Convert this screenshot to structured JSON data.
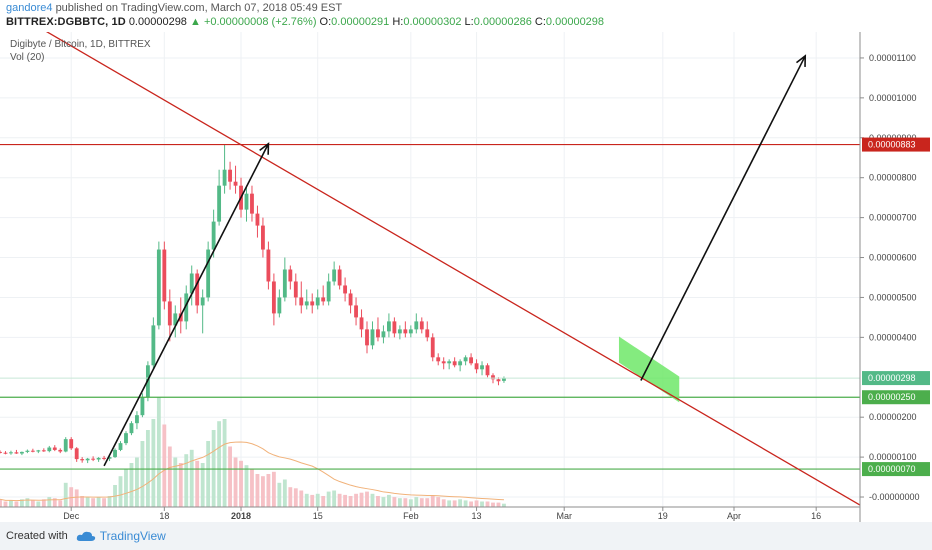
{
  "header": {
    "author": "gandore4",
    "published_text": "published on TradingView.com, March 07, 2018 05:49 EST",
    "symbol": "BITTREX:DGBBTC, 1D",
    "last": "0.00000298",
    "change": "▲ +0.00000008 (+2.76%)",
    "o_label": "O:",
    "o_value": "0.00000291",
    "h_label": "H:",
    "h_value": "0.00000302",
    "l_label": "L:",
    "l_value": "0.00000286",
    "c_label": "C:",
    "c_value": "0.00000298"
  },
  "footer": {
    "created_with": "Created with",
    "brand": "TradingView"
  },
  "colors": {
    "up": "#53b987",
    "down": "#eb4d5c",
    "up_volume": "#bfe5cf",
    "down_volume": "#f6c1c6",
    "trendline": "#c9251d",
    "resistance": "#c9251d",
    "support": "#4cae4c",
    "current_price": "#53b987",
    "highlight": "#6ee868",
    "arrow": "#111111",
    "ma": "#f1b27a"
  },
  "chart_data": {
    "type": "candlestick",
    "title": "Digibyte / Bitcoin, 1D, BITTREX",
    "indicator": "Vol (20)",
    "ylim": [
      -2.5e-07,
      1.165e-05
    ],
    "y_ticks": [
      "0.00001100",
      "0.00001000",
      "0.00000900",
      "0.00000800",
      "0.00000700",
      "0.00000600",
      "0.00000500",
      "0.00000400",
      "0.00000200",
      "0.00000100",
      "-0.00000000"
    ],
    "x_ticks": [
      {
        "label": "Dec",
        "day": 0
      },
      {
        "label": "18",
        "day": 17
      },
      {
        "label": "2018",
        "day": 31
      },
      {
        "label": "15",
        "day": 45
      },
      {
        "label": "Feb",
        "day": 62
      },
      {
        "label": "13",
        "day": 74
      },
      {
        "label": "Mar",
        "day": 90
      },
      {
        "label": "19",
        "day": 108
      },
      {
        "label": "Apr",
        "day": 121
      },
      {
        "label": "16",
        "day": 136
      }
    ],
    "x_range_days": [
      -13,
      144
    ],
    "price_labels": [
      {
        "value": 8.83e-06,
        "text": "0.00000883",
        "color": "#c9251d"
      },
      {
        "value": 2.98e-06,
        "text": "0.00000298",
        "color": "#53b987"
      },
      {
        "value": 2.5e-06,
        "text": "0.00000250",
        "color": "#4cae4c"
      },
      {
        "value": 7e-07,
        "text": "0.00000070",
        "color": "#4cae4c"
      }
    ],
    "horizontal_lines": [
      {
        "value": 8.83e-06,
        "kind": "resistance"
      },
      {
        "value": 2.5e-06,
        "kind": "support"
      },
      {
        "value": 7e-07,
        "kind": "support"
      },
      {
        "value": 2.98e-06,
        "kind": "current"
      }
    ],
    "trendline": {
      "p1": {
        "day": -5,
        "value": 1.17e-05
      },
      "p2": {
        "day": 144,
        "value": -2e-07
      }
    },
    "arrows": [
      {
        "from": {
          "day": 6,
          "value": 7.8e-07
        },
        "to": {
          "day": 36,
          "value": 8.85e-06
        }
      },
      {
        "from": {
          "day": 104,
          "value": 2.92e-06
        },
        "to": {
          "day": 134,
          "value": 1.105e-05
        }
      }
    ],
    "highlight_zone": {
      "day_start": 100,
      "day_end": 111,
      "top_start": 4.02e-06,
      "top_end": 3.02e-06,
      "height": 6.5e-07
    },
    "candles": [
      {
        "day": -13,
        "o": 1.13e-06,
        "h": 1.17e-06,
        "l": 1.09e-06,
        "c": 1.11e-06,
        "v": 0.07
      },
      {
        "day": -12,
        "o": 1.11e-06,
        "h": 1.15e-06,
        "l": 1.07e-06,
        "c": 1.1e-06,
        "v": 0.05
      },
      {
        "day": -11,
        "o": 1.1e-06,
        "h": 1.16e-06,
        "l": 1.06e-06,
        "c": 1.12e-06,
        "v": 0.06
      },
      {
        "day": -10,
        "o": 1.12e-06,
        "h": 1.18e-06,
        "l": 1.08e-06,
        "c": 1.09e-06,
        "v": 0.05
      },
      {
        "day": -9,
        "o": 1.09e-06,
        "h": 1.14e-06,
        "l": 1.05e-06,
        "c": 1.13e-06,
        "v": 0.07
      },
      {
        "day": -8,
        "o": 1.13e-06,
        "h": 1.19e-06,
        "l": 1.1e-06,
        "c": 1.16e-06,
        "v": 0.08
      },
      {
        "day": -7,
        "o": 1.16e-06,
        "h": 1.21e-06,
        "l": 1.12e-06,
        "c": 1.14e-06,
        "v": 0.06
      },
      {
        "day": -6,
        "o": 1.14e-06,
        "h": 1.18e-06,
        "l": 1.1e-06,
        "c": 1.17e-06,
        "v": 0.05
      },
      {
        "day": -5,
        "o": 1.17e-06,
        "h": 1.22e-06,
        "l": 1.13e-06,
        "c": 1.15e-06,
        "v": 0.07
      },
      {
        "day": -4,
        "o": 1.15e-06,
        "h": 1.28e-06,
        "l": 1.12e-06,
        "c": 1.24e-06,
        "v": 0.09
      },
      {
        "day": -3,
        "o": 1.24e-06,
        "h": 1.3e-06,
        "l": 1.15e-06,
        "c": 1.18e-06,
        "v": 0.08
      },
      {
        "day": -2,
        "o": 1.18e-06,
        "h": 1.22e-06,
        "l": 1.1e-06,
        "c": 1.14e-06,
        "v": 0.06
      },
      {
        "day": -1,
        "o": 1.14e-06,
        "h": 1.5e-06,
        "l": 1.12e-06,
        "c": 1.45e-06,
        "v": 0.22
      },
      {
        "day": 0,
        "o": 1.45e-06,
        "h": 1.5e-06,
        "l": 1.18e-06,
        "c": 1.22e-06,
        "v": 0.18
      },
      {
        "day": 1,
        "o": 1.22e-06,
        "h": 1.25e-06,
        "l": 8.8e-07,
        "c": 9.5e-07,
        "v": 0.16
      },
      {
        "day": 2,
        "o": 9.5e-07,
        "h": 1e-06,
        "l": 8.6e-07,
        "c": 9.2e-07,
        "v": 0.1
      },
      {
        "day": 3,
        "o": 9.2e-07,
        "h": 9.8e-07,
        "l": 8.5e-07,
        "c": 9.6e-07,
        "v": 0.09
      },
      {
        "day": 4,
        "o": 9.6e-07,
        "h": 1.02e-06,
        "l": 9e-07,
        "c": 9.4e-07,
        "v": 0.08
      },
      {
        "day": 5,
        "o": 9.4e-07,
        "h": 1e-06,
        "l": 8.8e-07,
        "c": 9.8e-07,
        "v": 0.09
      },
      {
        "day": 6,
        "o": 9.8e-07,
        "h": 1.03e-06,
        "l": 9.2e-07,
        "c": 9.6e-07,
        "v": 0.08
      },
      {
        "day": 7,
        "o": 9.6e-07,
        "h": 1.04e-06,
        "l": 9e-07,
        "c": 1e-06,
        "v": 0.1
      },
      {
        "day": 8,
        "o": 1e-06,
        "h": 1.22e-06,
        "l": 9.8e-07,
        "c": 1.18e-06,
        "v": 0.2
      },
      {
        "day": 9,
        "o": 1.18e-06,
        "h": 1.4e-06,
        "l": 1.15e-06,
        "c": 1.35e-06,
        "v": 0.28
      },
      {
        "day": 10,
        "o": 1.35e-06,
        "h": 1.65e-06,
        "l": 1.3e-06,
        "c": 1.6e-06,
        "v": 0.35
      },
      {
        "day": 11,
        "o": 1.6e-06,
        "h": 1.9e-06,
        "l": 1.55e-06,
        "c": 1.85e-06,
        "v": 0.4
      },
      {
        "day": 12,
        "o": 1.85e-06,
        "h": 2.15e-06,
        "l": 1.7e-06,
        "c": 2.05e-06,
        "v": 0.45
      },
      {
        "day": 13,
        "o": 2.05e-06,
        "h": 2.6e-06,
        "l": 2e-06,
        "c": 2.5e-06,
        "v": 0.6
      },
      {
        "day": 14,
        "o": 2.5e-06,
        "h": 3.4e-06,
        "l": 2.4e-06,
        "c": 3.3e-06,
        "v": 0.7
      },
      {
        "day": 15,
        "o": 3.3e-06,
        "h": 4.5e-06,
        "l": 3.2e-06,
        "c": 4.3e-06,
        "v": 0.8
      },
      {
        "day": 16,
        "o": 4.3e-06,
        "h": 6.4e-06,
        "l": 4.2e-06,
        "c": 6.2e-06,
        "v": 1.0
      },
      {
        "day": 17,
        "o": 6.2e-06,
        "h": 6.4e-06,
        "l": 4.7e-06,
        "c": 4.9e-06,
        "v": 0.75
      },
      {
        "day": 18,
        "o": 4.9e-06,
        "h": 5.2e-06,
        "l": 3.9e-06,
        "c": 4.3e-06,
        "v": 0.55
      },
      {
        "day": 19,
        "o": 4.3e-06,
        "h": 4.8e-06,
        "l": 4e-06,
        "c": 4.6e-06,
        "v": 0.45
      },
      {
        "day": 20,
        "o": 4.6e-06,
        "h": 5e-06,
        "l": 4.1e-06,
        "c": 4.4e-06,
        "v": 0.4
      },
      {
        "day": 21,
        "o": 4.4e-06,
        "h": 5.3e-06,
        "l": 4.2e-06,
        "c": 5.1e-06,
        "v": 0.48
      },
      {
        "day": 22,
        "o": 5.1e-06,
        "h": 5.8e-06,
        "l": 4.8e-06,
        "c": 5.6e-06,
        "v": 0.52
      },
      {
        "day": 23,
        "o": 5.6e-06,
        "h": 5.7e-06,
        "l": 4.6e-06,
        "c": 4.8e-06,
        "v": 0.42
      },
      {
        "day": 24,
        "o": 4.8e-06,
        "h": 5.2e-06,
        "l": 4.1e-06,
        "c": 5e-06,
        "v": 0.4
      },
      {
        "day": 25,
        "o": 5e-06,
        "h": 6.4e-06,
        "l": 4.9e-06,
        "c": 6.2e-06,
        "v": 0.6
      },
      {
        "day": 26,
        "o": 6.2e-06,
        "h": 7.2e-06,
        "l": 6e-06,
        "c": 6.9e-06,
        "v": 0.7
      },
      {
        "day": 27,
        "o": 6.9e-06,
        "h": 8.2e-06,
        "l": 6.8e-06,
        "c": 7.8e-06,
        "v": 0.78
      },
      {
        "day": 28,
        "o": 7.8e-06,
        "h": 8.83e-06,
        "l": 7.6e-06,
        "c": 8.2e-06,
        "v": 0.8
      },
      {
        "day": 29,
        "o": 8.2e-06,
        "h": 8.4e-06,
        "l": 7.7e-06,
        "c": 7.9e-06,
        "v": 0.55
      },
      {
        "day": 30,
        "o": 7.9e-06,
        "h": 8.3e-06,
        "l": 7.6e-06,
        "c": 7.8e-06,
        "v": 0.45
      },
      {
        "day": 31,
        "o": 7.8e-06,
        "h": 8e-06,
        "l": 7e-06,
        "c": 7.2e-06,
        "v": 0.42
      },
      {
        "day": 32,
        "o": 7.2e-06,
        "h": 7.8e-06,
        "l": 6.9e-06,
        "c": 7.6e-06,
        "v": 0.38
      },
      {
        "day": 33,
        "o": 7.6e-06,
        "h": 7.8e-06,
        "l": 6.9e-06,
        "c": 7.1e-06,
        "v": 0.35
      },
      {
        "day": 34,
        "o": 7.1e-06,
        "h": 7.3e-06,
        "l": 6.5e-06,
        "c": 6.8e-06,
        "v": 0.3
      },
      {
        "day": 35,
        "o": 6.8e-06,
        "h": 7e-06,
        "l": 6e-06,
        "c": 6.2e-06,
        "v": 0.28
      },
      {
        "day": 36,
        "o": 6.2e-06,
        "h": 6.4e-06,
        "l": 5.2e-06,
        "c": 5.4e-06,
        "v": 0.3
      },
      {
        "day": 37,
        "o": 5.4e-06,
        "h": 5.6e-06,
        "l": 4.3e-06,
        "c": 4.6e-06,
        "v": 0.32
      },
      {
        "day": 38,
        "o": 4.6e-06,
        "h": 5.2e-06,
        "l": 4.5e-06,
        "c": 5e-06,
        "v": 0.22
      },
      {
        "day": 39,
        "o": 5e-06,
        "h": 6e-06,
        "l": 4.9e-06,
        "c": 5.7e-06,
        "v": 0.25
      },
      {
        "day": 40,
        "o": 5.7e-06,
        "h": 5.8e-06,
        "l": 5.2e-06,
        "c": 5.4e-06,
        "v": 0.18
      },
      {
        "day": 41,
        "o": 5.4e-06,
        "h": 5.6e-06,
        "l": 4.8e-06,
        "c": 5e-06,
        "v": 0.17
      },
      {
        "day": 42,
        "o": 5e-06,
        "h": 5.4e-06,
        "l": 4.6e-06,
        "c": 4.8e-06,
        "v": 0.15
      },
      {
        "day": 43,
        "o": 4.8e-06,
        "h": 5.2e-06,
        "l": 4.7e-06,
        "c": 4.9e-06,
        "v": 0.12
      },
      {
        "day": 44,
        "o": 4.9e-06,
        "h": 5.1e-06,
        "l": 4.6e-06,
        "c": 4.8e-06,
        "v": 0.11
      },
      {
        "day": 45,
        "o": 4.8e-06,
        "h": 5.2e-06,
        "l": 4.7e-06,
        "c": 5e-06,
        "v": 0.12
      },
      {
        "day": 46,
        "o": 5e-06,
        "h": 5.3e-06,
        "l": 4.8e-06,
        "c": 4.9e-06,
        "v": 0.1
      },
      {
        "day": 47,
        "o": 4.9e-06,
        "h": 5.6e-06,
        "l": 4.8e-06,
        "c": 5.4e-06,
        "v": 0.14
      },
      {
        "day": 48,
        "o": 5.4e-06,
        "h": 5.9e-06,
        "l": 5.3e-06,
        "c": 5.7e-06,
        "v": 0.15
      },
      {
        "day": 49,
        "o": 5.7e-06,
        "h": 5.8e-06,
        "l": 5.2e-06,
        "c": 5.3e-06,
        "v": 0.12
      },
      {
        "day": 50,
        "o": 5.3e-06,
        "h": 5.5e-06,
        "l": 4.9e-06,
        "c": 5.1e-06,
        "v": 0.11
      },
      {
        "day": 51,
        "o": 5.1e-06,
        "h": 5.2e-06,
        "l": 4.6e-06,
        "c": 4.8e-06,
        "v": 0.1
      },
      {
        "day": 52,
        "o": 4.8e-06,
        "h": 5e-06,
        "l": 4.3e-06,
        "c": 4.5e-06,
        "v": 0.12
      },
      {
        "day": 53,
        "o": 4.5e-06,
        "h": 4.7e-06,
        "l": 4e-06,
        "c": 4.2e-06,
        "v": 0.13
      },
      {
        "day": 54,
        "o": 4.2e-06,
        "h": 4.4e-06,
        "l": 3.6e-06,
        "c": 3.8e-06,
        "v": 0.14
      },
      {
        "day": 55,
        "o": 3.8e-06,
        "h": 4.4e-06,
        "l": 3.7e-06,
        "c": 4.2e-06,
        "v": 0.12
      },
      {
        "day": 56,
        "o": 4.2e-06,
        "h": 4.5e-06,
        "l": 3.9e-06,
        "c": 4e-06,
        "v": 0.1
      },
      {
        "day": 57,
        "o": 4e-06,
        "h": 4.3e-06,
        "l": 3.85e-06,
        "c": 4.15e-06,
        "v": 0.09
      },
      {
        "day": 58,
        "o": 4.15e-06,
        "h": 4.6e-06,
        "l": 4e-06,
        "c": 4.4e-06,
        "v": 0.11
      },
      {
        "day": 59,
        "o": 4.4e-06,
        "h": 4.5e-06,
        "l": 4e-06,
        "c": 4.1e-06,
        "v": 0.09
      },
      {
        "day": 60,
        "o": 4.1e-06,
        "h": 4.3e-06,
        "l": 3.95e-06,
        "c": 4.2e-06,
        "v": 0.08
      },
      {
        "day": 61,
        "o": 4.2e-06,
        "h": 4.4e-06,
        "l": 4e-06,
        "c": 4.1e-06,
        "v": 0.08
      },
      {
        "day": 62,
        "o": 4.1e-06,
        "h": 4.3e-06,
        "l": 4e-06,
        "c": 4.2e-06,
        "v": 0.07
      },
      {
        "day": 63,
        "o": 4.2e-06,
        "h": 4.6e-06,
        "l": 4.1e-06,
        "c": 4.4e-06,
        "v": 0.09
      },
      {
        "day": 64,
        "o": 4.4e-06,
        "h": 4.5e-06,
        "l": 4.1e-06,
        "c": 4.2e-06,
        "v": 0.08
      },
      {
        "day": 65,
        "o": 4.2e-06,
        "h": 4.4e-06,
        "l": 3.9e-06,
        "c": 4e-06,
        "v": 0.08
      },
      {
        "day": 66,
        "o": 4e-06,
        "h": 4.1e-06,
        "l": 3.4e-06,
        "c": 3.5e-06,
        "v": 0.1
      },
      {
        "day": 67,
        "o": 3.5e-06,
        "h": 3.6e-06,
        "l": 3.3e-06,
        "c": 3.4e-06,
        "v": 0.09
      },
      {
        "day": 68,
        "o": 3.4e-06,
        "h": 3.5e-06,
        "l": 3.2e-06,
        "c": 3.35e-06,
        "v": 0.07
      },
      {
        "day": 69,
        "o": 3.35e-06,
        "h": 3.45e-06,
        "l": 3.2e-06,
        "c": 3.4e-06,
        "v": 0.06
      },
      {
        "day": 70,
        "o": 3.4e-06,
        "h": 3.5e-06,
        "l": 3.25e-06,
        "c": 3.3e-06,
        "v": 0.06
      },
      {
        "day": 71,
        "o": 3.3e-06,
        "h": 3.45e-06,
        "l": 3.15e-06,
        "c": 3.4e-06,
        "v": 0.07
      },
      {
        "day": 72,
        "o": 3.4e-06,
        "h": 3.55e-06,
        "l": 3.3e-06,
        "c": 3.5e-06,
        "v": 0.06
      },
      {
        "day": 73,
        "o": 3.5e-06,
        "h": 3.6e-06,
        "l": 3.3e-06,
        "c": 3.35e-06,
        "v": 0.05
      },
      {
        "day": 74,
        "o": 3.35e-06,
        "h": 3.45e-06,
        "l": 3.1e-06,
        "c": 3.2e-06,
        "v": 0.06
      },
      {
        "day": 75,
        "o": 3.2e-06,
        "h": 3.4e-06,
        "l": 3.05e-06,
        "c": 3.3e-06,
        "v": 0.05
      },
      {
        "day": 76,
        "o": 3.3e-06,
        "h": 3.35e-06,
        "l": 3e-06,
        "c": 3.05e-06,
        "v": 0.05
      },
      {
        "day": 77,
        "o": 3.05e-06,
        "h": 3.1e-06,
        "l": 2.85e-06,
        "c": 2.95e-06,
        "v": 0.04
      },
      {
        "day": 78,
        "o": 2.95e-06,
        "h": 3e-06,
        "l": 2.8e-06,
        "c": 2.9e-06,
        "v": 0.04
      },
      {
        "day": 79,
        "o": 2.91e-06,
        "h": 3.02e-06,
        "l": 2.86e-06,
        "c": 2.98e-06,
        "v": 0.03
      }
    ]
  }
}
